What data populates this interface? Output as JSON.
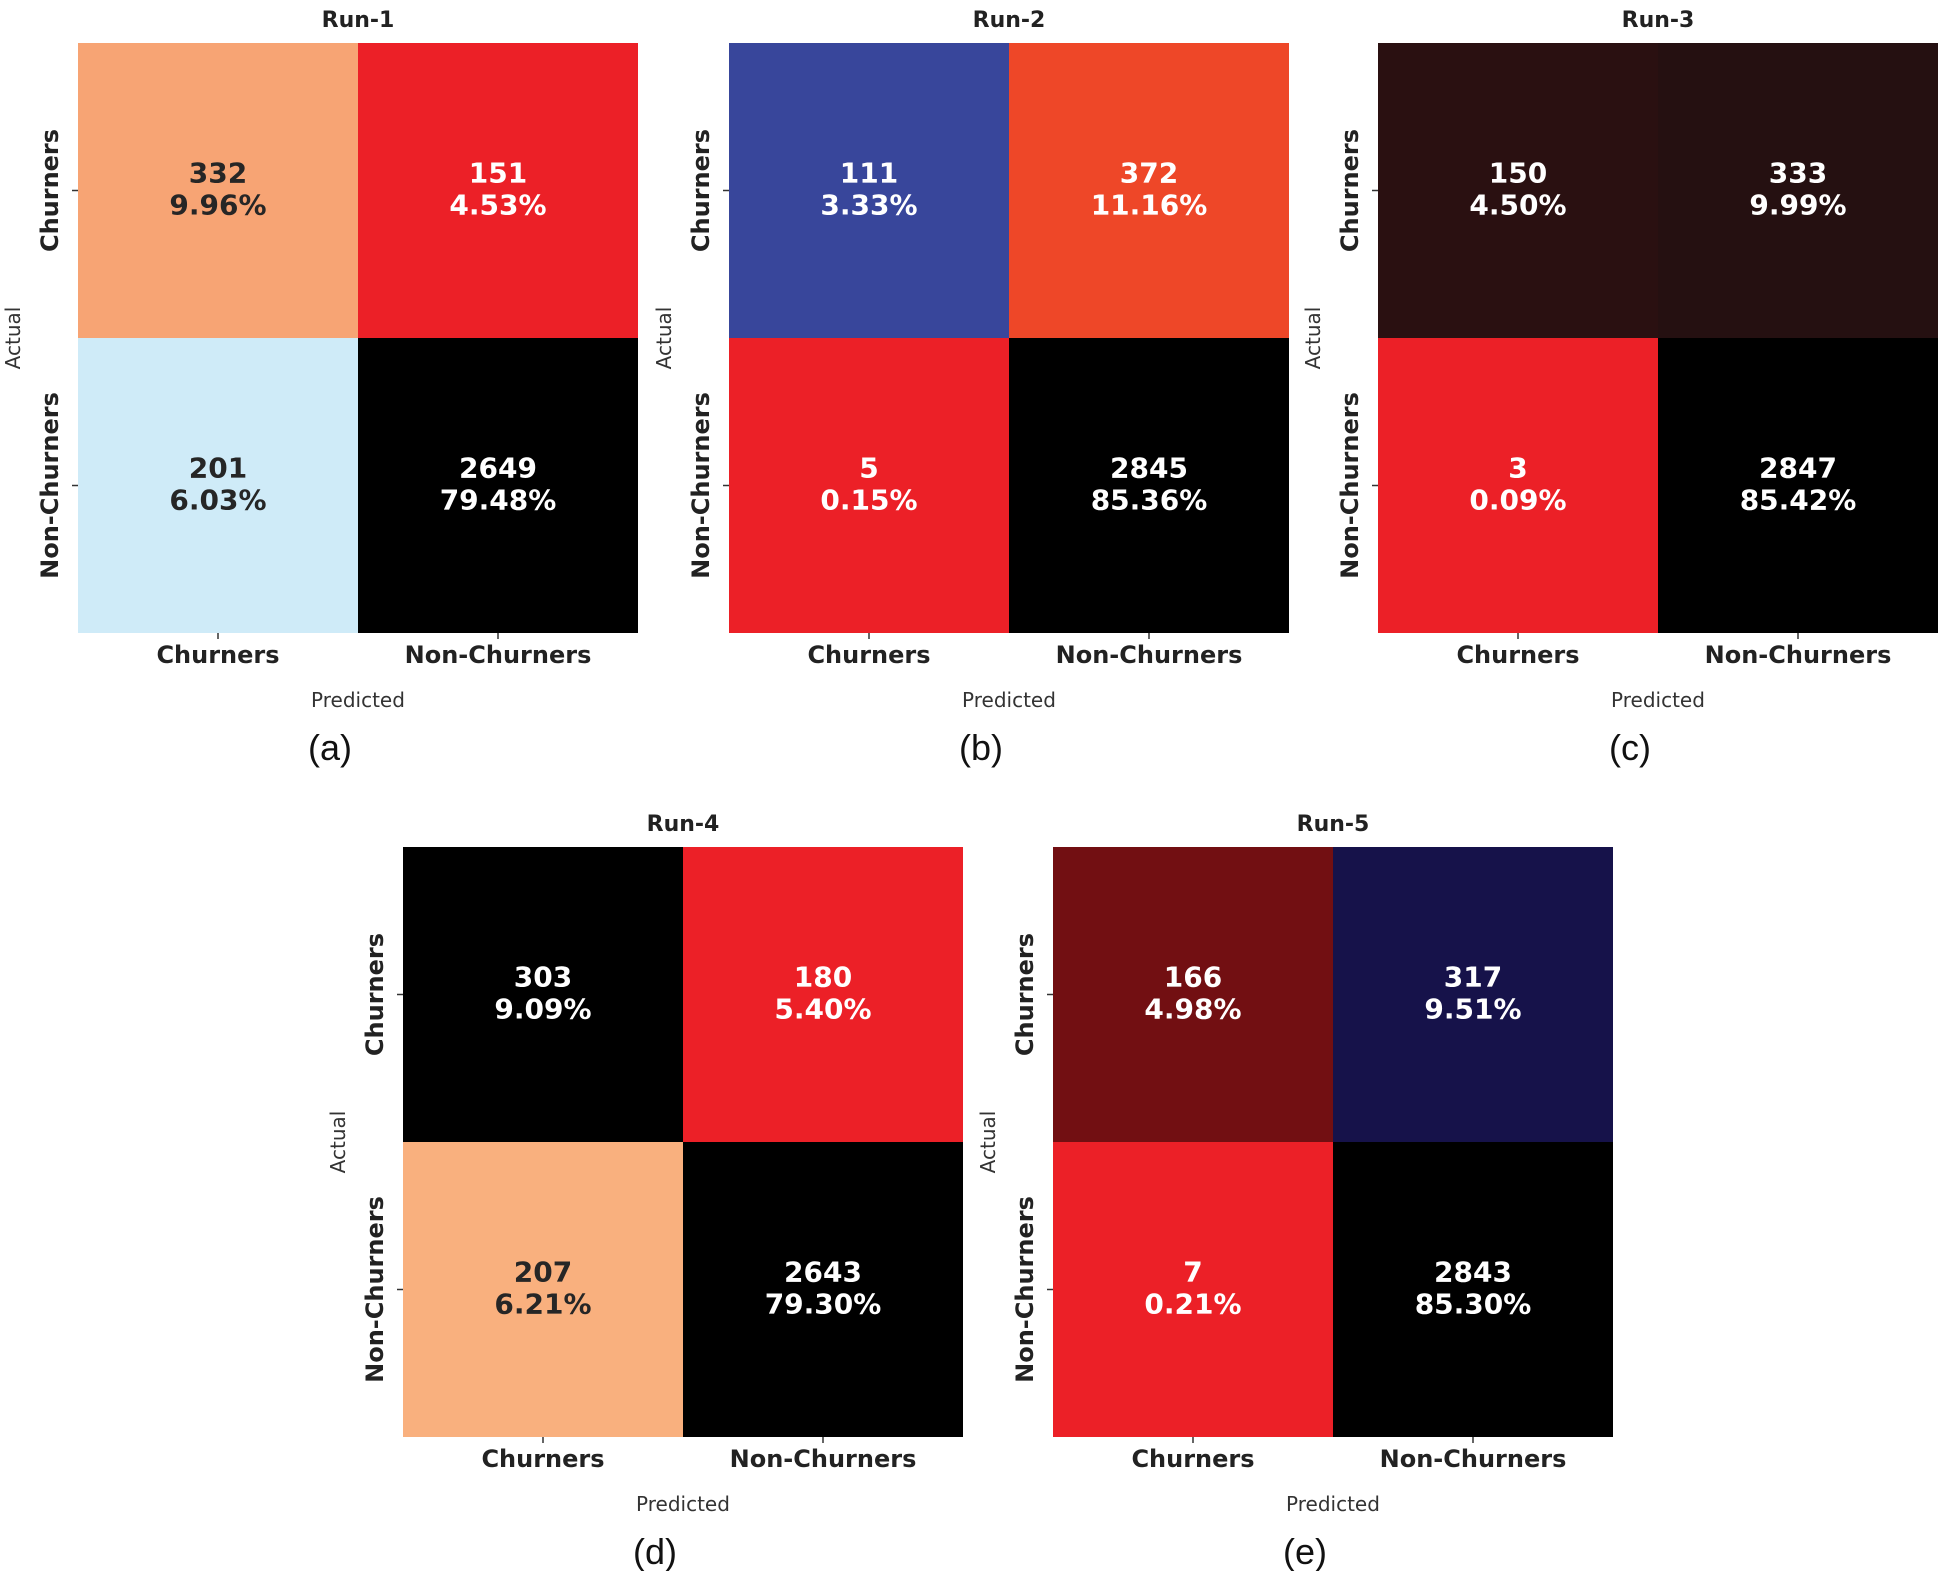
{
  "chart_data": [
    {
      "type": "heatmap",
      "title": "Run-1",
      "caption": "(a)",
      "xlabel": "Predicted",
      "ylabel": "Actual",
      "x_categories": [
        "Churners",
        "Non-Churners"
      ],
      "y_categories": [
        "Churners",
        "Non-Churners"
      ],
      "cells": [
        [
          {
            "count": "332",
            "percent": "9.96%",
            "color": "#f7a474",
            "text_color": "#262626"
          },
          {
            "count": "151",
            "percent": "4.53%",
            "color": "#ec2027",
            "text_color": "#ffffff"
          }
        ],
        [
          {
            "count": "201",
            "percent": "6.03%",
            "color": "#cfebf8",
            "text_color": "#262626"
          },
          {
            "count": "2649",
            "percent": "79.48%",
            "color": "#000000",
            "text_color": "#ffffff"
          }
        ]
      ]
    },
    {
      "type": "heatmap",
      "title": "Run-2",
      "caption": "(b)",
      "xlabel": "Predicted",
      "ylabel": "Actual",
      "x_categories": [
        "Churners",
        "Non-Churners"
      ],
      "y_categories": [
        "Churners",
        "Non-Churners"
      ],
      "cells": [
        [
          {
            "count": "111",
            "percent": "3.33%",
            "color": "#38469b",
            "text_color": "#ffffff"
          },
          {
            "count": "372",
            "percent": "11.16%",
            "color": "#ee4728",
            "text_color": "#ffffff"
          }
        ],
        [
          {
            "count": "5",
            "percent": "0.15%",
            "color": "#ec2027",
            "text_color": "#ffffff"
          },
          {
            "count": "2845",
            "percent": "85.36%",
            "color": "#000000",
            "text_color": "#ffffff"
          }
        ]
      ]
    },
    {
      "type": "heatmap",
      "title": "Run-3",
      "caption": "(c)",
      "xlabel": "Predicted",
      "ylabel": "Actual",
      "x_categories": [
        "Churners",
        "Non-Churners"
      ],
      "y_categories": [
        "Churners",
        "Non-Churners"
      ],
      "cells": [
        [
          {
            "count": "150",
            "percent": "4.50%",
            "color": "#2a1011",
            "text_color": "#ffffff"
          },
          {
            "count": "333",
            "percent": "9.99%",
            "color": "#251011",
            "text_color": "#ffffff"
          }
        ],
        [
          {
            "count": "3",
            "percent": "0.09%",
            "color": "#ec2027",
            "text_color": "#ffffff"
          },
          {
            "count": "2847",
            "percent": "85.42%",
            "color": "#000000",
            "text_color": "#ffffff"
          }
        ]
      ]
    },
    {
      "type": "heatmap",
      "title": "Run-4",
      "caption": "(d)",
      "xlabel": "Predicted",
      "ylabel": "Actual",
      "x_categories": [
        "Churners",
        "Non-Churners"
      ],
      "y_categories": [
        "Churners",
        "Non-Churners"
      ],
      "cells": [
        [
          {
            "count": "303",
            "percent": "9.09%",
            "color": "#000000",
            "text_color": "#ffffff"
          },
          {
            "count": "180",
            "percent": "5.40%",
            "color": "#ec2027",
            "text_color": "#ffffff"
          }
        ],
        [
          {
            "count": "207",
            "percent": "6.21%",
            "color": "#f9b07e",
            "text_color": "#262626"
          },
          {
            "count": "2643",
            "percent": "79.30%",
            "color": "#000000",
            "text_color": "#ffffff"
          }
        ]
      ]
    },
    {
      "type": "heatmap",
      "title": "Run-5",
      "caption": "(e)",
      "xlabel": "Predicted",
      "ylabel": "Actual",
      "x_categories": [
        "Churners",
        "Non-Churners"
      ],
      "y_categories": [
        "Churners",
        "Non-Churners"
      ],
      "cells": [
        [
          {
            "count": "166",
            "percent": "4.98%",
            "color": "#720f12",
            "text_color": "#ffffff"
          },
          {
            "count": "317",
            "percent": "9.51%",
            "color": "#16124a",
            "text_color": "#ffffff"
          }
        ],
        [
          {
            "count": "7",
            "percent": "0.21%",
            "color": "#ec2027",
            "text_color": "#ffffff"
          },
          {
            "count": "2843",
            "percent": "85.30%",
            "color": "#000000",
            "text_color": "#ffffff"
          }
        ]
      ]
    }
  ]
}
